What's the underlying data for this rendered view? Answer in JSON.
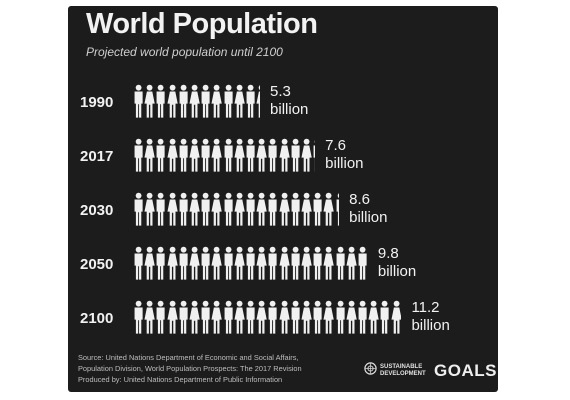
{
  "header": {
    "title": "World Population",
    "subtitle": "Projected world population until 2100"
  },
  "chart_data": {
    "type": "bar",
    "title": "World Population",
    "subtitle": "Projected world population until 2100",
    "categories": [
      "1990",
      "2017",
      "2030",
      "2050",
      "2100"
    ],
    "values": [
      5.3,
      7.6,
      8.6,
      9.8,
      11.2
    ],
    "value_labels": [
      [
        "5.3",
        "billion"
      ],
      [
        "7.6",
        "billion"
      ],
      [
        "8.6",
        "billion"
      ],
      [
        "9.8",
        "billion"
      ],
      [
        "11.2",
        "billion"
      ]
    ],
    "unit": "billion",
    "style": "pictogram",
    "icon": "person-icon",
    "orientation": "horizontal",
    "grid": false,
    "legend": "none",
    "colors": {
      "background": "#1c1c1c",
      "icon": "#f0f0f0",
      "text": "#f2f2f2"
    }
  },
  "footer": {
    "source_lines": [
      "Source: United Nations Department of Economic and Social Affairs,",
      "Population Division, World Population Prospects: The 2017 Revision",
      "Produced by: United Nations Department of Public Information"
    ],
    "logo_icon": "un-emblem-icon",
    "logo_text_1": "SUSTAINABLE",
    "logo_text_2": "DEVELOPMENT",
    "logo_goals": "GOALS"
  }
}
